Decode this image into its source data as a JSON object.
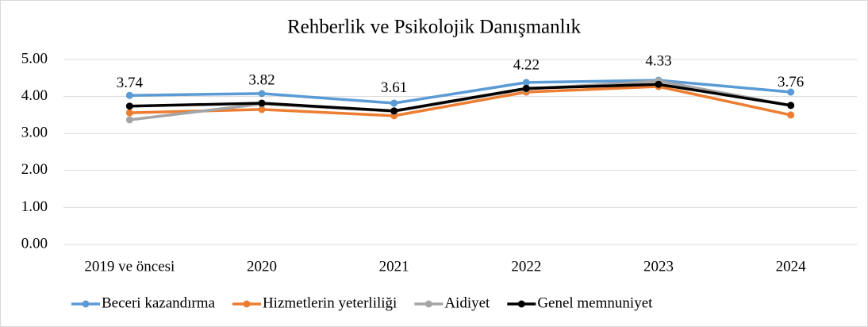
{
  "chart_data": {
    "type": "line",
    "title": "Rehberlik ve Psikolojik Danışmanlık",
    "categories": [
      "2019 ve öncesi",
      "2020",
      "2021",
      "2022",
      "2023",
      "2024"
    ],
    "series": [
      {
        "name": "Beceri kazandırma",
        "color": "#5b9bd5",
        "values": [
          4.03,
          4.08,
          3.82,
          4.38,
          4.44,
          4.12
        ]
      },
      {
        "name": "Hizmetlerin yeterliliği",
        "color": "#ed7d31",
        "values": [
          3.56,
          3.65,
          3.48,
          4.12,
          4.27,
          3.5
        ]
      },
      {
        "name": "Aidiyet",
        "color": "#a5a5a5",
        "values": [
          3.37,
          3.8,
          3.6,
          4.2,
          4.42,
          3.76
        ]
      },
      {
        "name": "Genel memnuniyet",
        "color": "#000000",
        "values": [
          3.74,
          3.82,
          3.61,
          4.22,
          4.33,
          3.76
        ],
        "show_labels": true
      }
    ],
    "ylim": [
      0,
      5
    ],
    "yticks": [
      {
        "value": 0,
        "label": "0.00"
      },
      {
        "value": 1,
        "label": "1.00"
      },
      {
        "value": 2,
        "label": "2.00"
      },
      {
        "value": 3,
        "label": "3.00"
      },
      {
        "value": 4,
        "label": "4.00"
      },
      {
        "value": 5,
        "label": "5.00"
      }
    ],
    "grid": true,
    "legend": "bottom"
  }
}
